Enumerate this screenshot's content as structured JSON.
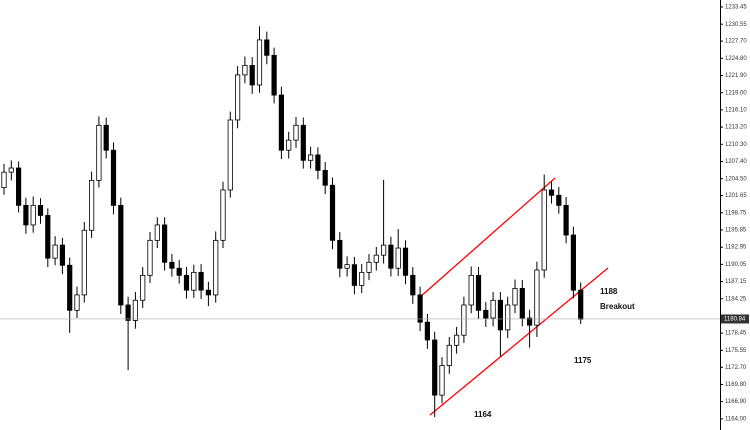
{
  "chart_data": {
    "type": "candlestick",
    "annotations": [
      "1188",
      "Breakout",
      "1175",
      "1164"
    ],
    "open": [
      1203.0,
      1205.6,
      1206.3,
      1200.0,
      1196.7,
      1200.0,
      1198.3,
      1191.1,
      1193.3,
      1189.9,
      1182.3,
      1184.9,
      1195.8,
      1204.2,
      1213.5,
      1209.3,
      1200.0,
      1183.2,
      1180.6,
      1184.0,
      1188.2,
      1194.1,
      1196.7,
      1190.4,
      1189.4,
      1188.2,
      1185.7,
      1188.7,
      1185.7,
      1184.9,
      1194.1,
      1202.6,
      1214.4,
      1222.0,
      1223.6,
      1220.3,
      1227.9,
      1225.3,
      1218.6,
      1209.3,
      1211.0,
      1213.5,
      1207.6,
      1208.5,
      1205.9,
      1203.4,
      1194.1,
      1189.4,
      1190.0,
      1186.5,
      1188.7,
      1190.4,
      1191.6,
      1193.3,
      1189.4,
      1192.8,
      1188.2,
      1184.9,
      1180.3,
      1177.3,
      1168.0,
      1173.0,
      1176.4,
      1178.1,
      1183.2,
      1188.2,
      1182.3,
      1181.0,
      1184.0,
      1179.0,
      1183.2,
      1186.0,
      1181.0,
      1179.8,
      1189.1,
      1202.6,
      1201.7,
      1200.0,
      1195.0,
      1185.7
    ],
    "high": [
      1207.0,
      1207.6,
      1207.4,
      1201.3,
      1201.5,
      1201.2,
      1199.5,
      1194.8,
      1194.5,
      1191.2,
      1186.3,
      1197.2,
      1205.7,
      1215.0,
      1214.8,
      1210.6,
      1201.3,
      1184.6,
      1185.4,
      1189.6,
      1195.5,
      1198.0,
      1198.0,
      1191.8,
      1190.8,
      1189.6,
      1190.0,
      1190.1,
      1187.1,
      1195.6,
      1204.0,
      1215.8,
      1223.5,
      1225.1,
      1225.0,
      1230.2,
      1229.3,
      1226.6,
      1220.0,
      1212.4,
      1214.9,
      1214.8,
      1209.9,
      1209.8,
      1207.3,
      1204.7,
      1195.5,
      1191.4,
      1191.3,
      1190.1,
      1191.8,
      1193.0,
      1204.3,
      1194.7,
      1196.0,
      1194.1,
      1189.6,
      1186.3,
      1181.7,
      1178.7,
      1174.4,
      1177.8,
      1179.5,
      1184.6,
      1189.7,
      1189.6,
      1183.7,
      1185.4,
      1185.4,
      1184.6,
      1187.5,
      1187.4,
      1182.4,
      1190.5,
      1205.2,
      1204.0,
      1203.1,
      1201.4,
      1196.4,
      1187.0
    ],
    "low": [
      1201.8,
      1204.2,
      1198.8,
      1195.2,
      1195.4,
      1196.9,
      1189.6,
      1189.9,
      1188.4,
      1178.5,
      1181.0,
      1183.6,
      1194.5,
      1203.0,
      1207.9,
      1198.5,
      1181.7,
      1172.2,
      1179.2,
      1182.7,
      1186.9,
      1192.8,
      1189.0,
      1188.0,
      1186.8,
      1184.3,
      1184.4,
      1184.2,
      1183.0,
      1183.6,
      1192.8,
      1201.3,
      1213.0,
      1220.6,
      1218.8,
      1219.0,
      1223.8,
      1217.2,
      1207.8,
      1207.9,
      1209.7,
      1206.2,
      1206.2,
      1204.4,
      1201.9,
      1192.6,
      1187.9,
      1188.0,
      1185.0,
      1185.2,
      1187.4,
      1189.0,
      1190.2,
      1188.0,
      1188.1,
      1186.7,
      1183.4,
      1178.8,
      1175.8,
      1164.3,
      1166.6,
      1171.6,
      1175.0,
      1176.8,
      1181.8,
      1180.9,
      1179.5,
      1179.6,
      1174.5,
      1177.6,
      1181.8,
      1179.6,
      1176.0,
      1177.8,
      1187.8,
      1200.3,
      1198.6,
      1193.6,
      1184.3,
      1180.0
    ],
    "close": [
      1205.6,
      1206.3,
      1200.0,
      1196.7,
      1200.0,
      1198.3,
      1191.1,
      1193.3,
      1189.9,
      1182.3,
      1184.9,
      1195.8,
      1204.2,
      1213.5,
      1209.3,
      1200.0,
      1183.2,
      1180.6,
      1184.0,
      1188.2,
      1194.1,
      1196.7,
      1190.4,
      1189.4,
      1188.2,
      1185.7,
      1188.7,
      1185.7,
      1184.9,
      1194.1,
      1202.6,
      1214.4,
      1222.0,
      1223.6,
      1220.3,
      1227.9,
      1225.3,
      1218.6,
      1209.3,
      1211.0,
      1213.5,
      1207.6,
      1208.5,
      1205.9,
      1203.4,
      1194.1,
      1189.4,
      1190.0,
      1186.5,
      1188.7,
      1190.4,
      1191.6,
      1193.3,
      1189.4,
      1192.8,
      1188.2,
      1184.9,
      1180.3,
      1177.3,
      1168.0,
      1173.0,
      1176.4,
      1178.1,
      1183.2,
      1188.2,
      1182.3,
      1181.0,
      1184.0,
      1179.0,
      1183.2,
      1186.0,
      1181.0,
      1179.8,
      1189.1,
      1202.6,
      1201.7,
      1200.0,
      1195.0,
      1185.7,
      1180.8
    ],
    "up_color": "#ffffff",
    "down_color": "#000000",
    "last_price": 1180.84,
    "ylim": [
      1162.12,
      1234.63
    ],
    "yticks": [
      1233.45,
      1230.55,
      {
        "value": 1227.7,
        "label": "1227.70"
      },
      {
        "value": 1224.8,
        "label": "1224.80"
      },
      {
        "value": 1221.9,
        "label": "1221.90"
      },
      {
        "value": 1219,
        "label": "1219.00"
      },
      {
        "value": 1216.1,
        "label": "1216.10"
      },
      {
        "value": 1213.2,
        "label": "1213.20"
      },
      {
        "value": 1210.3,
        "label": "1210.30"
      },
      {
        "value": 1207.4,
        "label": "1207.40"
      },
      {
        "value": 1204.5,
        "label": "1204.50"
      },
      1201.65,
      1198.75,
      1195.85,
      1192.95,
      1190.05,
      1187.15,
      1184.25,
      1178.45,
      1175.55,
      {
        "value": 1172.7,
        "label": "1172.70"
      },
      {
        "value": 1169.8,
        "label": "1169.80"
      },
      {
        "value": 1166.9,
        "label": "1166.90"
      },
      {
        "value": 1164,
        "label": "1164.00"
      }
    ]
  }
}
